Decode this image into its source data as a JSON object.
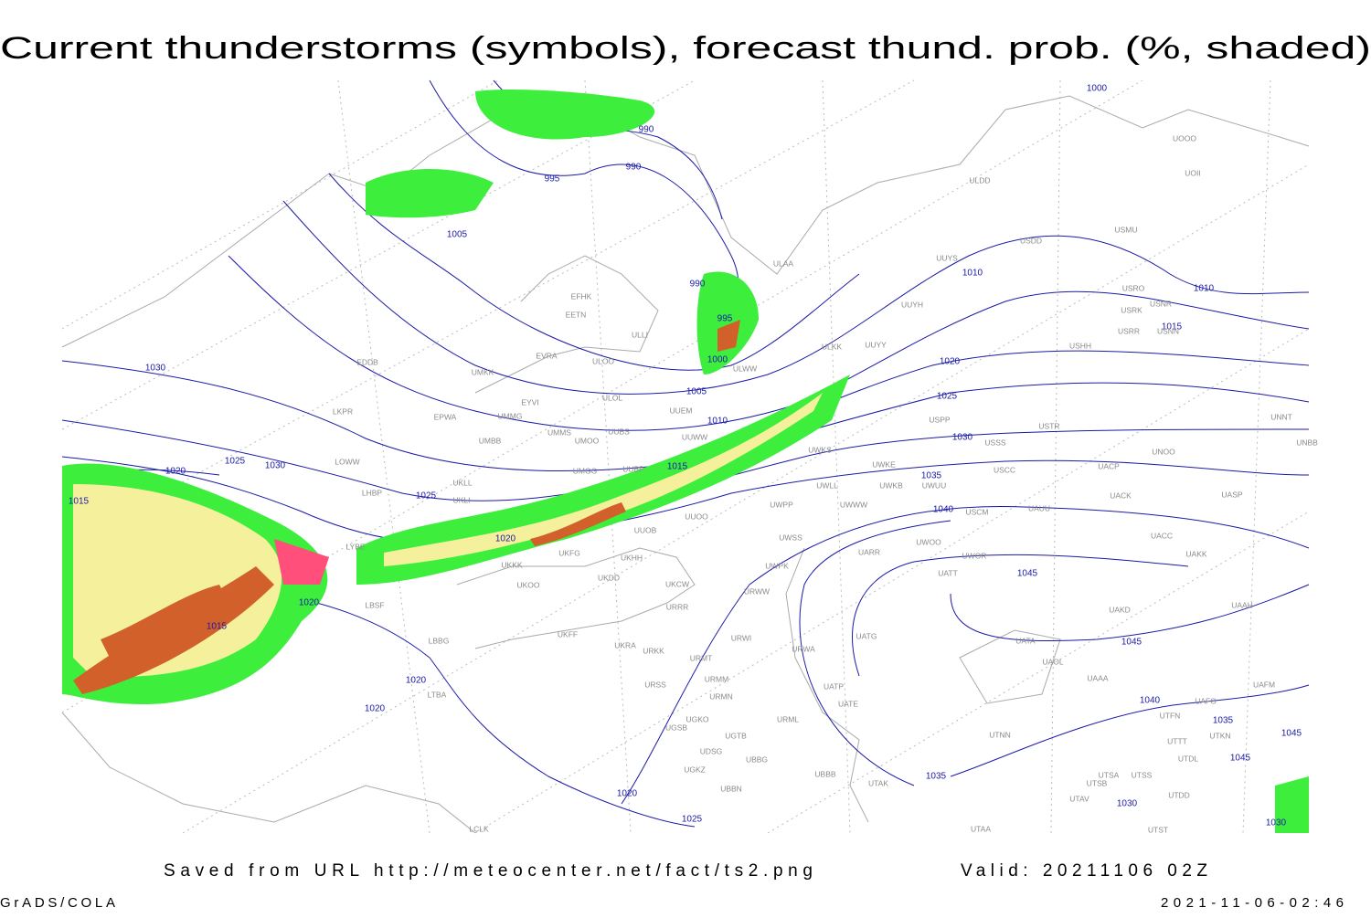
{
  "header": {
    "title": "Current thunderstorms (symbols), forecast thund. prob. (%, shaded)"
  },
  "isobar_labels": [
    1000,
    990,
    990,
    995,
    1005,
    990,
    995,
    1000,
    1005,
    1010,
    1015,
    1020,
    1020,
    1015,
    1020,
    1020,
    1020,
    1025,
    1030,
    1025,
    1030,
    1025,
    1020,
    1015,
    1010,
    1010,
    1015,
    1020,
    1025,
    1030,
    1035,
    1040,
    1045,
    1045,
    1040,
    1035,
    1045,
    1045,
    1035,
    1030,
    1030
  ],
  "stations": [
    "UOOO",
    "UOII",
    "ULDD",
    "USDD",
    "USMU",
    "ULAA",
    "UUYS",
    "USRO",
    "USRK",
    "USNR",
    "USRR",
    "USNN",
    "UUYH",
    "ULKK",
    "UUYY",
    "USHH",
    "EFHK",
    "EETN",
    "EVRA",
    "ULOO",
    "ULLI",
    "ULWW",
    "EDDB",
    "UMKK",
    "EYVI",
    "ULOL",
    "UUEM",
    "LKPR",
    "EPWA",
    "UMMG",
    "UMMS",
    "UUBS",
    "UMOO",
    "UUWW",
    "UMBB",
    "USPP",
    "USTR",
    "USSS",
    "UNOO",
    "UNBB",
    "UNNT",
    "UWKS",
    "LOWW",
    "UKLL",
    "UMGG",
    "UUBP",
    "UWKE",
    "USCC",
    "UACP",
    "LHBP",
    "UKLI",
    "UWLL",
    "UWKB",
    "UWUU",
    "UACK",
    "UASP",
    "UWPP",
    "UWWW",
    "USCM",
    "UAUU",
    "UUOO",
    "UUOB",
    "UACC",
    "LYBE",
    "UKFG",
    "UKHH",
    "UWSS",
    "UARR",
    "UWOO",
    "UWOR",
    "UAKK",
    "UKKK",
    "UKDD",
    "UWPK",
    "UATT",
    "UKOO",
    "UKCW",
    "URWW",
    "LBSF",
    "URRR",
    "UAKD",
    "UAAH",
    "UKFF",
    "UKRA",
    "URWI",
    "UATG",
    "URKK",
    "URWA",
    "UATA",
    "LBBG",
    "URMT",
    "UAOL",
    "UAAA",
    "UAFM",
    "URSS",
    "URMM",
    "UATP",
    "URMN",
    "LTBA",
    "UTFN",
    "UAFO",
    "UATE",
    "UGKO",
    "URML",
    "UGSB",
    "UGTB",
    "UTNN",
    "UTTT",
    "UTKN",
    "UDSG",
    "UGKZ",
    "UBBG",
    "UTDL",
    "UBBB",
    "UTSA",
    "UTSS",
    "UTAK",
    "UTSB",
    "UBBN",
    "UTAV",
    "UTDD",
    "UTAA",
    "UTST",
    "LCLK"
  ],
  "footer": {
    "source": "Saved from URL http://meteocenter.net/fact/ts2.png",
    "valid": "Valid: 20211106 02Z",
    "software": "GrADS/COLA",
    "timestamp": "2021-11-06-02:46"
  }
}
